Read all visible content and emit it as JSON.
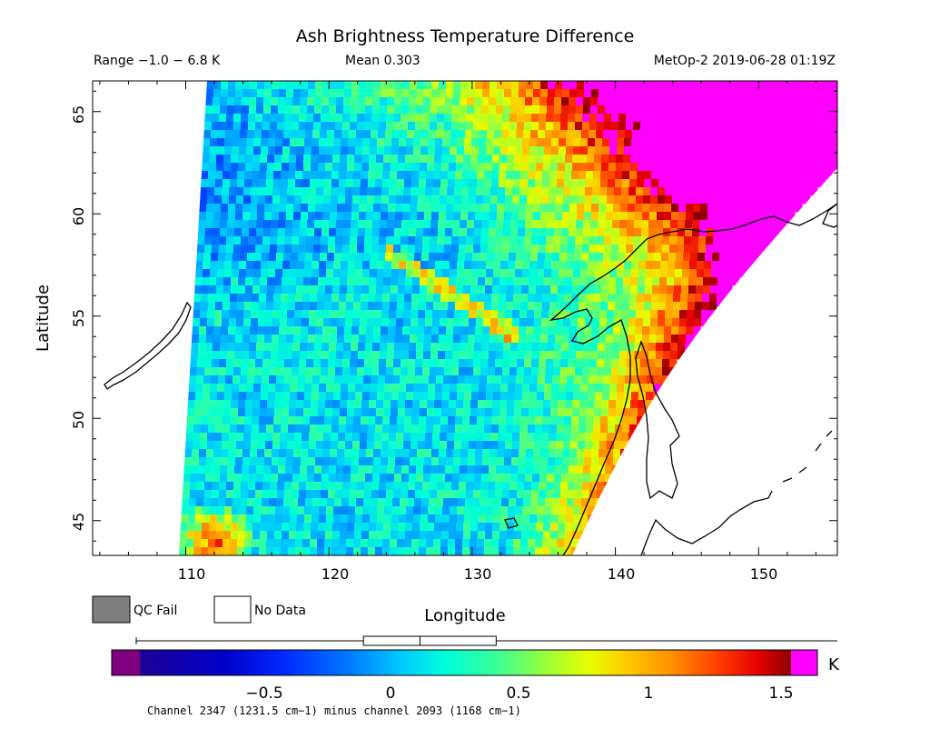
{
  "chart_data": {
    "type": "heatmap",
    "title": "Ash Brightness Temperature Difference",
    "range_text": "Range −1.0 − 6.8 K",
    "mean_text": "Mean 0.303",
    "source_text": "MetOp-2 2019-06-28 01:19Z",
    "xlabel": "Longitude",
    "ylabel": "Latitude",
    "xlim": [
      103.5,
      155.5
    ],
    "ylim": [
      43.3,
      66.5
    ],
    "x_ticks": [
      "110",
      "120",
      "130",
      "140",
      "150"
    ],
    "y_ticks": [
      "45",
      "50",
      "55",
      "60",
      "65"
    ],
    "x_tick_values": [
      110,
      120,
      130,
      140,
      150
    ],
    "y_tick_values": [
      45,
      50,
      55,
      60,
      65
    ],
    "colorbar": {
      "min": -1.0,
      "max": 1.65,
      "ticks": [
        "−0.5",
        "0",
        "0.5",
        "1",
        "1.5"
      ],
      "tick_values": [
        -0.5,
        0,
        0.5,
        1,
        1.5
      ],
      "units": "K",
      "box_stats": {
        "whisker_low": -1.0,
        "q1": -0.09,
        "median": 0.14,
        "q3": 0.45,
        "whisker_high": 1.7
      }
    },
    "legend": [
      {
        "label": "QC Fail",
        "color": "#7f7f7f"
      },
      {
        "label": "No Data",
        "color": "#ffffff"
      }
    ],
    "footnote": "Channel 2347 (1231.5 cm−1) minus channel 2093 (1168 cm−1)",
    "swath_description": "Satellite swath from about 110E at 43N to 137E, eastern edge slanting to about 155E at 62N. Values mostly near 0 to 0.2 K, lower (−0.6) in the northwest, high (1 to 1.6+ K, saturated magenta) in the northeast over the Okhotsk/Kamchatka region.",
    "color_scale": [
      "#7f007f",
      "#1e0096",
      "#0000c8",
      "#0028ff",
      "#0078ff",
      "#00c8ff",
      "#00ffd8",
      "#3cff96",
      "#96ff3c",
      "#e6ff00",
      "#ffc800",
      "#ff8c00",
      "#ff3c00",
      "#e60000",
      "#8c0000",
      "#ff00ff"
    ]
  }
}
